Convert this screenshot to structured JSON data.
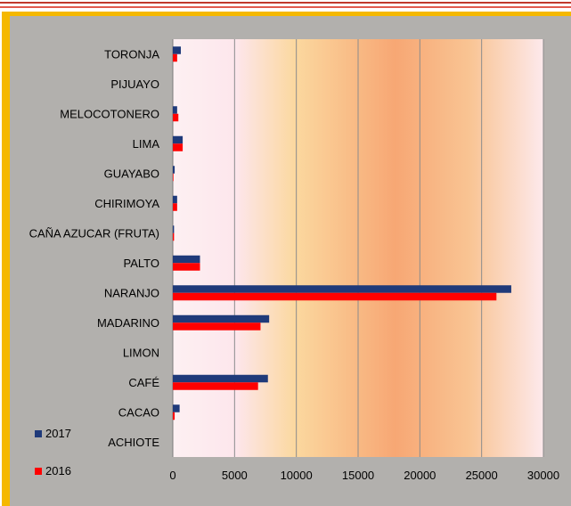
{
  "chart_data": {
    "type": "bar",
    "orientation": "horizontal",
    "categories": [
      "TORONJA",
      "PIJUAYO",
      "MELOCOTONERO",
      "LIMA",
      "GUAYABO",
      "CHIRIMOYA",
      "CAÑA AZUCAR (FRUTA)",
      "PALTO",
      "NARANJO",
      "MADARINO",
      "LIMON",
      "CAFÉ",
      "CACAO",
      "ACHIOTE"
    ],
    "series": [
      {
        "name": "2017",
        "color": "#1f3a7a",
        "values": [
          650,
          0,
          350,
          800,
          150,
          350,
          100,
          2200,
          27400,
          7800,
          0,
          7700,
          550,
          0
        ]
      },
      {
        "name": "2016",
        "color": "#ff0000",
        "values": [
          350,
          0,
          450,
          800,
          50,
          350,
          100,
          2200,
          26200,
          7100,
          0,
          6900,
          150,
          0
        ]
      }
    ],
    "xlim": [
      0,
      30000
    ],
    "ticks": [
      "0",
      "5000",
      "10000",
      "15000",
      "20000",
      "25000",
      "30000"
    ],
    "tick_values": [
      0,
      5000,
      10000,
      15000,
      20000,
      25000,
      30000
    ],
    "grid": true,
    "legend_position": "bottom-left",
    "title": "",
    "xlabel": "",
    "ylabel": ""
  }
}
